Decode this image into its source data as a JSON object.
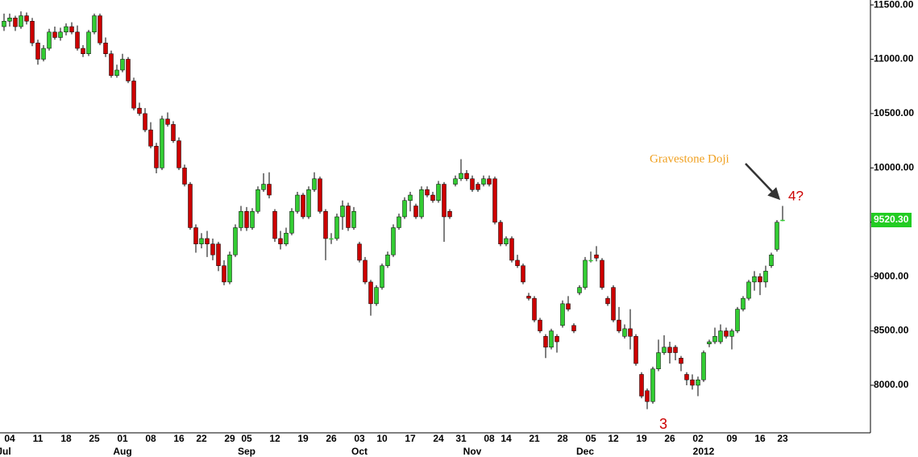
{
  "chart_data": {
    "type": "candlestick",
    "ylim": [
      7540,
      11545
    ],
    "yticks": [
      {
        "value": 8000,
        "label": "8000.00"
      },
      {
        "value": 8500,
        "label": "8500.00"
      },
      {
        "value": 9000,
        "label": "9000.00"
      },
      {
        "value": 9500,
        "label": "9500.00"
      },
      {
        "value": 10000,
        "label": "10000.00"
      },
      {
        "value": 10500,
        "label": "10500.00"
      },
      {
        "value": 11000,
        "label": "11000.00"
      },
      {
        "value": 11500,
        "label": "11500.00"
      }
    ],
    "up_color": "#33cc33",
    "down_color": "#cc0000",
    "last_price": {
      "value": 9520.3,
      "label": "9520.30",
      "color": "#22cc22"
    },
    "annotations": [
      {
        "text": "Gravestone Doji",
        "color": "#f0a020"
      },
      {
        "text": "4?",
        "color": "#cc0000"
      },
      {
        "text": "3",
        "color": "#cc0000"
      }
    ],
    "categories": [
      null,
      "04",
      null,
      null,
      null,
      null,
      "11",
      null,
      null,
      null,
      null,
      "18",
      null,
      null,
      null,
      null,
      "25",
      null,
      null,
      null,
      null,
      "01",
      null,
      null,
      null,
      null,
      "08",
      null,
      null,
      null,
      null,
      "16",
      null,
      null,
      null,
      "22",
      null,
      null,
      null,
      null,
      "29",
      null,
      null,
      "05",
      null,
      null,
      null,
      null,
      "12",
      null,
      null,
      null,
      null,
      "19",
      null,
      null,
      null,
      null,
      "26",
      null,
      null,
      null,
      null,
      "03",
      null,
      null,
      null,
      "10",
      null,
      null,
      null,
      null,
      "17",
      null,
      null,
      null,
      null,
      "24",
      null,
      null,
      null,
      "31",
      null,
      null,
      null,
      null,
      "08",
      null,
      null,
      "14",
      null,
      null,
      null,
      null,
      "21",
      null,
      null,
      null,
      null,
      "28",
      null,
      null,
      null,
      null,
      "05",
      null,
      null,
      null,
      "12",
      null,
      null,
      null,
      null,
      "19",
      null,
      null,
      null,
      null,
      "26",
      null,
      null,
      null,
      null,
      "02",
      null,
      null,
      null,
      null,
      null,
      "09",
      null,
      null,
      null,
      null,
      "16",
      null,
      null,
      null,
      "23"
    ],
    "months": [
      "Jul",
      null,
      null,
      null,
      null,
      null,
      null,
      null,
      null,
      null,
      null,
      null,
      null,
      null,
      null,
      null,
      null,
      null,
      null,
      null,
      null,
      "Aug",
      null,
      null,
      null,
      null,
      null,
      null,
      null,
      null,
      null,
      null,
      null,
      null,
      null,
      null,
      null,
      null,
      null,
      null,
      null,
      null,
      null,
      "Sep",
      null,
      null,
      null,
      null,
      null,
      null,
      null,
      null,
      null,
      null,
      null,
      null,
      null,
      null,
      null,
      null,
      null,
      null,
      null,
      "Oct",
      null,
      null,
      null,
      null,
      null,
      null,
      null,
      null,
      null,
      null,
      null,
      null,
      null,
      null,
      null,
      null,
      null,
      null,
      null,
      "Nov",
      null,
      null,
      null,
      null,
      null,
      null,
      null,
      null,
      null,
      null,
      null,
      null,
      null,
      null,
      null,
      null,
      null,
      null,
      null,
      "Dec",
      null,
      null,
      null,
      null,
      null,
      null,
      null,
      null,
      null,
      null,
      null,
      null,
      null,
      null,
      null,
      null,
      null,
      null,
      null,
      null,
      "2012",
      null,
      null,
      null,
      null,
      null,
      null,
      null,
      null,
      null,
      null,
      null,
      null,
      null,
      null
    ],
    "candles": [
      [
        11300,
        11420,
        11260,
        11350
      ],
      [
        11350,
        11420,
        11300,
        11380
      ],
      [
        11380,
        11400,
        11260,
        11300
      ],
      [
        11300,
        11440,
        11280,
        11400
      ],
      [
        11400,
        11430,
        11320,
        11350
      ],
      [
        11350,
        11380,
        11120,
        11150
      ],
      [
        11150,
        11180,
        10950,
        11000
      ],
      [
        11000,
        11130,
        10980,
        11100
      ],
      [
        11100,
        11280,
        11080,
        11250
      ],
      [
        11250,
        11300,
        11180,
        11200
      ],
      [
        11200,
        11290,
        11170,
        11250
      ],
      [
        11250,
        11330,
        11220,
        11300
      ],
      [
        11300,
        11340,
        11230,
        11250
      ],
      [
        11250,
        11310,
        11080,
        11100
      ],
      [
        11100,
        11130,
        11020,
        11050
      ],
      [
        11050,
        11270,
        11030,
        11250
      ],
      [
        11250,
        11420,
        11230,
        11400
      ],
      [
        11400,
        11420,
        11130,
        11150
      ],
      [
        11150,
        11200,
        11020,
        11050
      ],
      [
        11050,
        11080,
        10830,
        10850
      ],
      [
        10850,
        10950,
        10830,
        10900
      ],
      [
        10900,
        11050,
        10880,
        11000
      ],
      [
        11000,
        11020,
        10780,
        10800
      ],
      [
        10800,
        10830,
        10530,
        10550
      ],
      [
        10550,
        10600,
        10480,
        10500
      ],
      [
        10500,
        10550,
        10330,
        10350
      ],
      [
        10350,
        10420,
        10180,
        10200
      ],
      [
        10200,
        10230,
        9950,
        10000
      ],
      [
        10000,
        10480,
        9980,
        10450
      ],
      [
        10450,
        10510,
        10380,
        10400
      ],
      [
        10400,
        10430,
        10230,
        10250
      ],
      [
        10250,
        10280,
        9980,
        10000
      ],
      [
        10000,
        10030,
        9830,
        9850
      ],
      [
        9850,
        9870,
        9430,
        9450
      ],
      [
        9450,
        9480,
        9220,
        9300
      ],
      [
        9300,
        9400,
        9260,
        9350
      ],
      [
        9350,
        9420,
        9180,
        9300
      ],
      [
        9300,
        9350,
        9150,
        9200
      ],
      [
        9300,
        9320,
        9050,
        9100
      ],
      [
        9100,
        9150,
        8920,
        8950
      ],
      [
        8950,
        9230,
        8930,
        9200
      ],
      [
        9200,
        9480,
        9180,
        9450
      ],
      [
        9450,
        9650,
        9420,
        9600
      ],
      [
        9600,
        9640,
        9420,
        9450
      ],
      [
        9450,
        9630,
        9430,
        9600
      ],
      [
        9600,
        9830,
        9580,
        9800
      ],
      [
        9800,
        9950,
        9780,
        9850
      ],
      [
        9850,
        9960,
        9720,
        9750
      ],
      [
        9600,
        9620,
        9320,
        9350
      ],
      [
        9350,
        9420,
        9250,
        9300
      ],
      [
        9300,
        9450,
        9280,
        9400
      ],
      [
        9400,
        9630,
        9380,
        9600
      ],
      [
        9600,
        9780,
        9580,
        9750
      ],
      [
        9750,
        9770,
        9530,
        9550
      ],
      [
        9550,
        9830,
        9530,
        9800
      ],
      [
        9800,
        9960,
        9780,
        9900
      ],
      [
        9900,
        9920,
        9580,
        9600
      ],
      [
        9600,
        9620,
        9150,
        9350
      ],
      [
        9350,
        9400,
        9300,
        9350
      ],
      [
        9350,
        9580,
        9330,
        9550
      ],
      [
        9550,
        9700,
        9430,
        9650
      ],
      [
        9650,
        9680,
        9420,
        9450
      ],
      [
        9450,
        9640,
        9430,
        9600
      ],
      [
        9300,
        9320,
        9130,
        9150
      ],
      [
        9150,
        9180,
        8930,
        8950
      ],
      [
        8950,
        8970,
        8640,
        8750
      ],
      [
        8750,
        8920,
        8730,
        8900
      ],
      [
        8900,
        9120,
        8880,
        9100
      ],
      [
        9100,
        9230,
        9080,
        9200
      ],
      [
        9200,
        9480,
        9180,
        9450
      ],
      [
        9450,
        9580,
        9430,
        9550
      ],
      [
        9550,
        9730,
        9530,
        9700
      ],
      [
        9700,
        9780,
        9600,
        9750
      ],
      [
        9650,
        9670,
        9530,
        9550
      ],
      [
        9550,
        9830,
        9530,
        9800
      ],
      [
        9800,
        9830,
        9730,
        9750
      ],
      [
        9750,
        9780,
        9680,
        9700
      ],
      [
        9700,
        9880,
        9680,
        9850
      ],
      [
        9850,
        9870,
        9320,
        9550
      ],
      [
        9600,
        9620,
        9530,
        9550
      ],
      [
        9850,
        9930,
        9830,
        9900
      ],
      [
        9900,
        10080,
        9880,
        9950
      ],
      [
        9950,
        9980,
        9880,
        9900
      ],
      [
        9900,
        9930,
        9780,
        9800
      ],
      [
        9850,
        9870,
        9780,
        9800
      ],
      [
        9850,
        9930,
        9830,
        9900
      ],
      [
        9900,
        9930,
        9830,
        9850
      ],
      [
        9900,
        9920,
        9480,
        9500
      ],
      [
        9500,
        9520,
        9280,
        9300
      ],
      [
        9300,
        9370,
        9280,
        9350
      ],
      [
        9350,
        9370,
        9130,
        9150
      ],
      [
        9150,
        9200,
        9080,
        9100
      ],
      [
        9100,
        9120,
        8930,
        8950
      ],
      [
        8820,
        8850,
        8780,
        8800
      ],
      [
        8800,
        8820,
        8580,
        8600
      ],
      [
        8600,
        8620,
        8480,
        8500
      ],
      [
        8450,
        8470,
        8250,
        8350
      ],
      [
        8350,
        8520,
        8330,
        8500
      ],
      [
        8450,
        8470,
        8300,
        8400
      ],
      [
        8550,
        8780,
        8530,
        8750
      ],
      [
        8750,
        8820,
        8680,
        8700
      ],
      [
        8550,
        8570,
        8480,
        8500
      ],
      [
        8850,
        8920,
        8830,
        8900
      ],
      [
        8900,
        9180,
        8880,
        9150
      ],
      [
        9150,
        9230,
        9130,
        9150
      ],
      [
        9200,
        9280,
        9140,
        9170
      ],
      [
        9150,
        9170,
        8880,
        8900
      ],
      [
        8800,
        8820,
        8730,
        8750
      ],
      [
        8900,
        8920,
        8580,
        8600
      ],
      [
        8600,
        8720,
        8480,
        8500
      ],
      [
        8450,
        8560,
        8430,
        8520
      ],
      [
        8520,
        8700,
        8330,
        8450
      ],
      [
        8450,
        8470,
        8180,
        8200
      ],
      [
        8100,
        8120,
        7880,
        7900
      ],
      [
        7950,
        7970,
        7780,
        7850
      ],
      [
        7850,
        8170,
        7830,
        8150
      ],
      [
        8150,
        8420,
        8130,
        8300
      ],
      [
        8300,
        8460,
        8280,
        8350
      ],
      [
        8350,
        8400,
        8200,
        8300
      ],
      [
        8350,
        8370,
        8230,
        8300
      ],
      [
        8250,
        8270,
        8130,
        8200
      ],
      [
        8100,
        8120,
        8000,
        8050
      ],
      [
        8050,
        8100,
        7960,
        8000
      ],
      [
        8000,
        8080,
        7900,
        8050
      ],
      [
        8050,
        8320,
        8030,
        8300
      ],
      [
        8380,
        8420,
        8350,
        8400
      ],
      [
        8400,
        8530,
        8380,
        8450
      ],
      [
        8400,
        8560,
        8380,
        8500
      ],
      [
        8500,
        8530,
        8430,
        8450
      ],
      [
        8450,
        8520,
        8330,
        8500
      ],
      [
        8500,
        8720,
        8480,
        8700
      ],
      [
        8700,
        8820,
        8680,
        8800
      ],
      [
        8800,
        8970,
        8780,
        8950
      ],
      [
        8950,
        9050,
        8870,
        9000
      ],
      [
        9000,
        9030,
        8830,
        8950
      ],
      [
        8950,
        9100,
        8900,
        9050
      ],
      [
        9100,
        9220,
        9080,
        9200
      ],
      [
        9250,
        9520,
        9230,
        9500
      ],
      [
        9520.3,
        9650,
        9510,
        9520.3
      ]
    ]
  }
}
